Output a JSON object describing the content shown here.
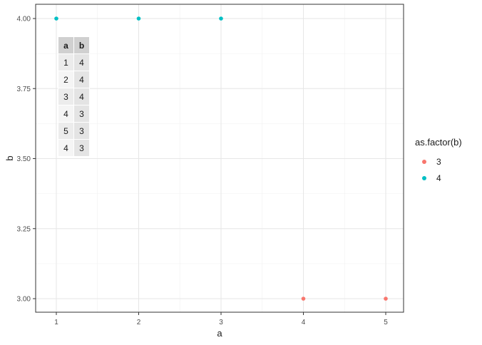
{
  "chart_data": {
    "type": "scatter",
    "xlabel": "a",
    "ylabel": "b",
    "xlim": [
      0.75,
      5.25
    ],
    "ylim": [
      2.95,
      4.05
    ],
    "xticks": [
      "1",
      "2",
      "3",
      "4",
      "5"
    ],
    "yticks": [
      "3.00",
      "3.25",
      "3.50",
      "3.75",
      "4.00"
    ],
    "grid": true,
    "legend": {
      "title": "as.factor(b)",
      "position": "right",
      "entries": [
        {
          "label": "3",
          "color": "#F8766D"
        },
        {
          "label": "4",
          "color": "#00BFC4"
        }
      ]
    },
    "series": [
      {
        "name": "3",
        "color": "#F8766D",
        "points": [
          {
            "x": 4,
            "y": 3
          },
          {
            "x": 5,
            "y": 3
          }
        ]
      },
      {
        "name": "4",
        "color": "#00BFC4",
        "points": [
          {
            "x": 1,
            "y": 4
          },
          {
            "x": 2,
            "y": 4
          },
          {
            "x": 3,
            "y": 4
          }
        ]
      }
    ],
    "table": {
      "headers": [
        "a",
        "b"
      ],
      "rows": [
        [
          "1",
          "4"
        ],
        [
          "2",
          "4"
        ],
        [
          "3",
          "4"
        ],
        [
          "4",
          "3"
        ],
        [
          "5",
          "3"
        ],
        [
          "4",
          "3"
        ]
      ]
    }
  }
}
